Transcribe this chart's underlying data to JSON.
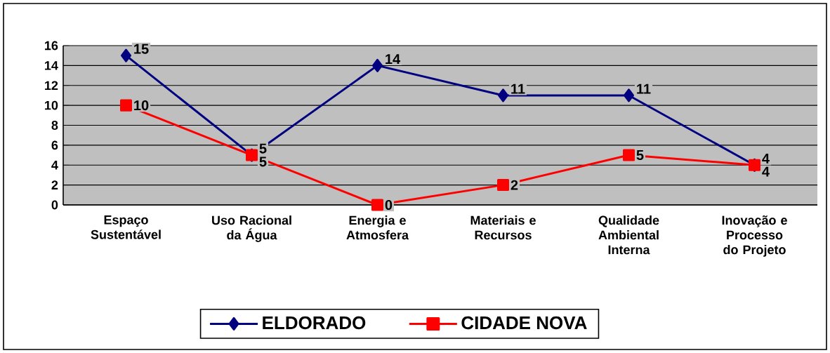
{
  "chart_data": {
    "type": "line",
    "categories": [
      "Espaço Sustentável",
      "Uso Racional da Água",
      "Energia e Atmosfera",
      "Materiais e Recursos",
      "Qualidade Ambiental Interna",
      "Inovação e Processo do Projeto"
    ],
    "series": [
      {
        "name": "ELDORADO",
        "color": "#000080",
        "marker": "diamond",
        "values": [
          15,
          5,
          14,
          11,
          11,
          4
        ]
      },
      {
        "name": "CIDADE NOVA",
        "color": "#ff0000",
        "marker": "square",
        "values": [
          10,
          5,
          0,
          2,
          5,
          4
        ]
      }
    ],
    "ylim": [
      0,
      16
    ],
    "yticks": [
      0,
      2,
      4,
      6,
      8,
      10,
      12,
      14,
      16
    ],
    "grid": "y",
    "legend": "bottom",
    "data_labels": true,
    "line_style": "solid"
  }
}
